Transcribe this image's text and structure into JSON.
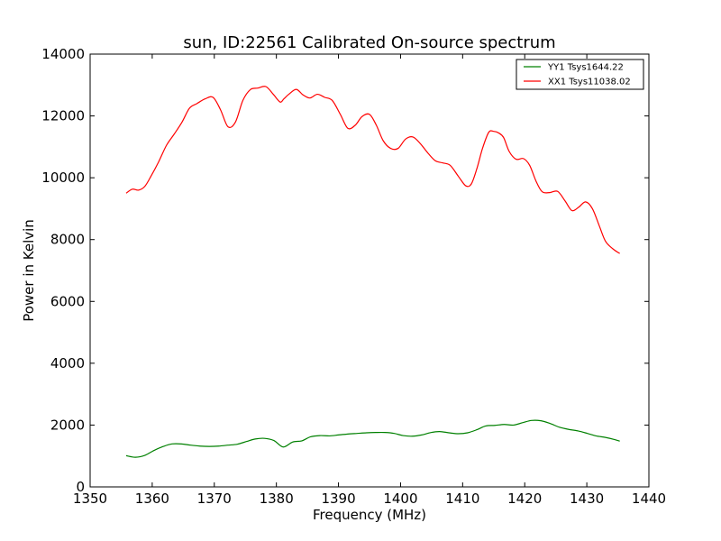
{
  "chart_data": {
    "type": "line",
    "title": "sun, ID:22561 Calibrated On-source spectrum",
    "xlabel": "Frequency (MHz)",
    "ylabel": "Power in Kelvin",
    "xlim": [
      1350,
      1440
    ],
    "ylim": [
      0,
      14000
    ],
    "xticks": [
      1350,
      1360,
      1370,
      1380,
      1390,
      1400,
      1410,
      1420,
      1430,
      1440
    ],
    "yticks": [
      0,
      2000,
      4000,
      6000,
      8000,
      10000,
      12000,
      14000
    ],
    "grid": false,
    "legend_position": "top-right",
    "series": [
      {
        "name": "YY1 Tsys1644.22",
        "color": "#008000",
        "x": [
          1355.8,
          1357.3,
          1358.8,
          1360.3,
          1361.8,
          1363.2,
          1364.7,
          1366.2,
          1367.7,
          1369.2,
          1370.7,
          1372.2,
          1373.7,
          1375.2,
          1376.6,
          1378.1,
          1379.6,
          1381.1,
          1382.6,
          1384.1,
          1385.5,
          1387.0,
          1388.6,
          1390.0,
          1391.5,
          1393.0,
          1394.5,
          1396.0,
          1397.5,
          1399.0,
          1400.4,
          1401.9,
          1403.4,
          1404.9,
          1406.3,
          1407.8,
          1409.3,
          1410.8,
          1412.3,
          1413.7,
          1415.2,
          1416.7,
          1418.2,
          1419.7,
          1421.1,
          1422.6,
          1424.1,
          1425.6,
          1427.1,
          1428.6,
          1430.1,
          1431.5,
          1433.0,
          1434.5,
          1435.3
        ],
        "y": [
          1010,
          960,
          1020,
          1180,
          1310,
          1390,
          1390,
          1350,
          1320,
          1310,
          1320,
          1350,
          1380,
          1470,
          1550,
          1570,
          1500,
          1290,
          1450,
          1490,
          1620,
          1660,
          1650,
          1680,
          1710,
          1730,
          1750,
          1760,
          1760,
          1730,
          1660,
          1640,
          1680,
          1760,
          1790,
          1750,
          1720,
          1750,
          1850,
          1970,
          1990,
          2020,
          2000,
          2080,
          2150,
          2140,
          2050,
          1930,
          1860,
          1810,
          1730,
          1650,
          1600,
          1530,
          1480
        ]
      },
      {
        "name": "XX1 Tsys11038.02",
        "color": "#ff0000",
        "x": [
          1355.8,
          1356.8,
          1357.8,
          1358.8,
          1359.8,
          1361.0,
          1362.3,
          1363.5,
          1364.8,
          1366.0,
          1367.2,
          1368.5,
          1369.8,
          1371.0,
          1372.2,
          1373.4,
          1374.6,
          1375.8,
          1377.0,
          1378.3,
          1379.5,
          1380.6,
          1381.2,
          1382.0,
          1383.2,
          1384.3,
          1385.4,
          1386.6,
          1387.8,
          1389.0,
          1390.3,
          1391.5,
          1392.7,
          1393.8,
          1395.0,
          1396.1,
          1397.2,
          1398.4,
          1399.6,
          1400.8,
          1402.0,
          1403.2,
          1404.4,
          1405.6,
          1406.8,
          1408.0,
          1409.3,
          1410.5,
          1411.4,
          1412.3,
          1413.2,
          1414.2,
          1415.0,
          1415.8,
          1416.6,
          1417.5,
          1418.6,
          1419.8,
          1420.8,
          1421.8,
          1422.8,
          1424.0,
          1425.3,
          1426.5,
          1427.6,
          1428.7,
          1429.8,
          1430.9,
          1432.0,
          1433.0,
          1434.2,
          1435.3
        ],
        "y": [
          9500,
          9630,
          9600,
          9720,
          10050,
          10500,
          11050,
          11400,
          11800,
          12250,
          12400,
          12550,
          12600,
          12200,
          11650,
          11800,
          12500,
          12850,
          12900,
          12950,
          12700,
          12450,
          12550,
          12700,
          12860,
          12680,
          12580,
          12700,
          12600,
          12500,
          12050,
          11600,
          11700,
          11980,
          12050,
          11700,
          11200,
          10950,
          10950,
          11250,
          11320,
          11100,
          10800,
          10550,
          10480,
          10400,
          10050,
          9740,
          9800,
          10300,
          10950,
          11470,
          11500,
          11450,
          11300,
          10850,
          10600,
          10620,
          10400,
          9900,
          9550,
          9520,
          9560,
          9250,
          8940,
          9050,
          9220,
          9000,
          8450,
          7950,
          7700,
          7550
        ]
      }
    ]
  }
}
